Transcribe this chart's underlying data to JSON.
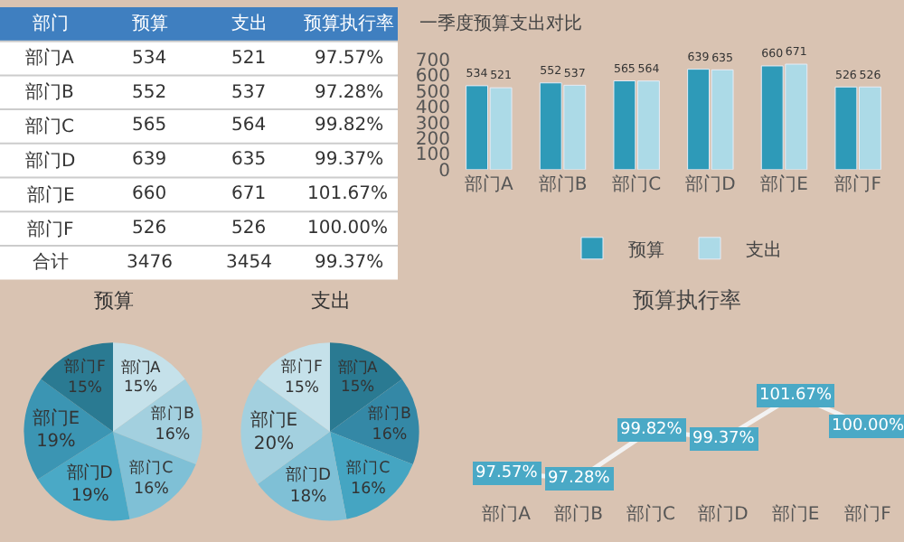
{
  "chart_data": [
    {
      "type": "other",
      "xlabel": "部门",
      "categories": [
        "部门A",
        "部门B",
        "部门C",
        "部门D",
        "部门E",
        "部门F",
        "合计"
      ],
      "series": [
        {
          "name": "预算",
          "values": [
            534,
            552,
            565,
            639,
            660,
            526,
            3476
          ]
        },
        {
          "name": "支出",
          "values": [
            521,
            537,
            564,
            635,
            671,
            526,
            3454
          ]
        },
        {
          "name": "预算执行率",
          "values": [
            97.57,
            97.28,
            99.82,
            99.37,
            101.67,
            100.0,
            99.37
          ],
          "value_labels": [
            "97.57%",
            "97.28%",
            "99.82%",
            "99.37%",
            "101.67%",
            "100.00%",
            "99.37%"
          ]
        }
      ],
      "data_labels": true
    },
    {
      "type": "bar",
      "title": "一季度预算支出对比",
      "categories": [
        "部门A",
        "部门B",
        "部门C",
        "部门D",
        "部门E",
        "部门F"
      ],
      "series": [
        {
          "name": "预算",
          "color": "#2e9ab8",
          "values": [
            534,
            552,
            565,
            639,
            660,
            526
          ]
        },
        {
          "name": "支出",
          "color": "#acdae7",
          "values": [
            521,
            537,
            564,
            635,
            671,
            526
          ]
        }
      ],
      "ylim": [
        0,
        700
      ],
      "yticks": [
        0,
        100,
        200,
        300,
        400,
        500,
        600,
        700
      ],
      "data_labels": true,
      "grid": false,
      "legend": "bottom"
    },
    {
      "type": "pie",
      "title": "预算",
      "categories": [
        "部门A",
        "部门B",
        "部门C",
        "部门D",
        "部门E",
        "部门F"
      ],
      "values": [
        15,
        16,
        16,
        19,
        19,
        15
      ],
      "value_labels": [
        "15%",
        "16%",
        "16%",
        "19%",
        "19%",
        "15%"
      ],
      "colors": [
        "#c5e1ea",
        "#a3d0df",
        "#7fc0d6",
        "#4aa9c6",
        "#3b95b3",
        "#2a7a92"
      ]
    },
    {
      "type": "pie",
      "title": "支出",
      "categories": [
        "部门A",
        "部门B",
        "部门C",
        "部门D",
        "部门E",
        "部门F"
      ],
      "values": [
        15,
        16,
        16,
        18,
        20,
        15
      ],
      "value_labels": [
        "15%",
        "16%",
        "16%",
        "18%",
        "20%",
        "15%"
      ],
      "colors": [
        "#2a7a92",
        "#3488a6",
        "#45a5c2",
        "#7fc0d6",
        "#a3d0df",
        "#c5e1ea"
      ]
    },
    {
      "type": "line",
      "title": "预算执行率",
      "categories": [
        "部门A",
        "部门B",
        "部门C",
        "部门D",
        "部门E",
        "部门F"
      ],
      "series": [
        {
          "color": "#f2f2f2",
          "values": [
            97.57,
            97.28,
            99.82,
            99.37,
            101.67,
            100.0
          ],
          "value_labels": [
            "97.57%",
            "97.28%",
            "99.82%",
            "99.37%",
            "101.67%",
            "100.00%"
          ]
        }
      ],
      "marker": "square",
      "tick_labels": "x",
      "grid": false,
      "legend": false
    }
  ]
}
